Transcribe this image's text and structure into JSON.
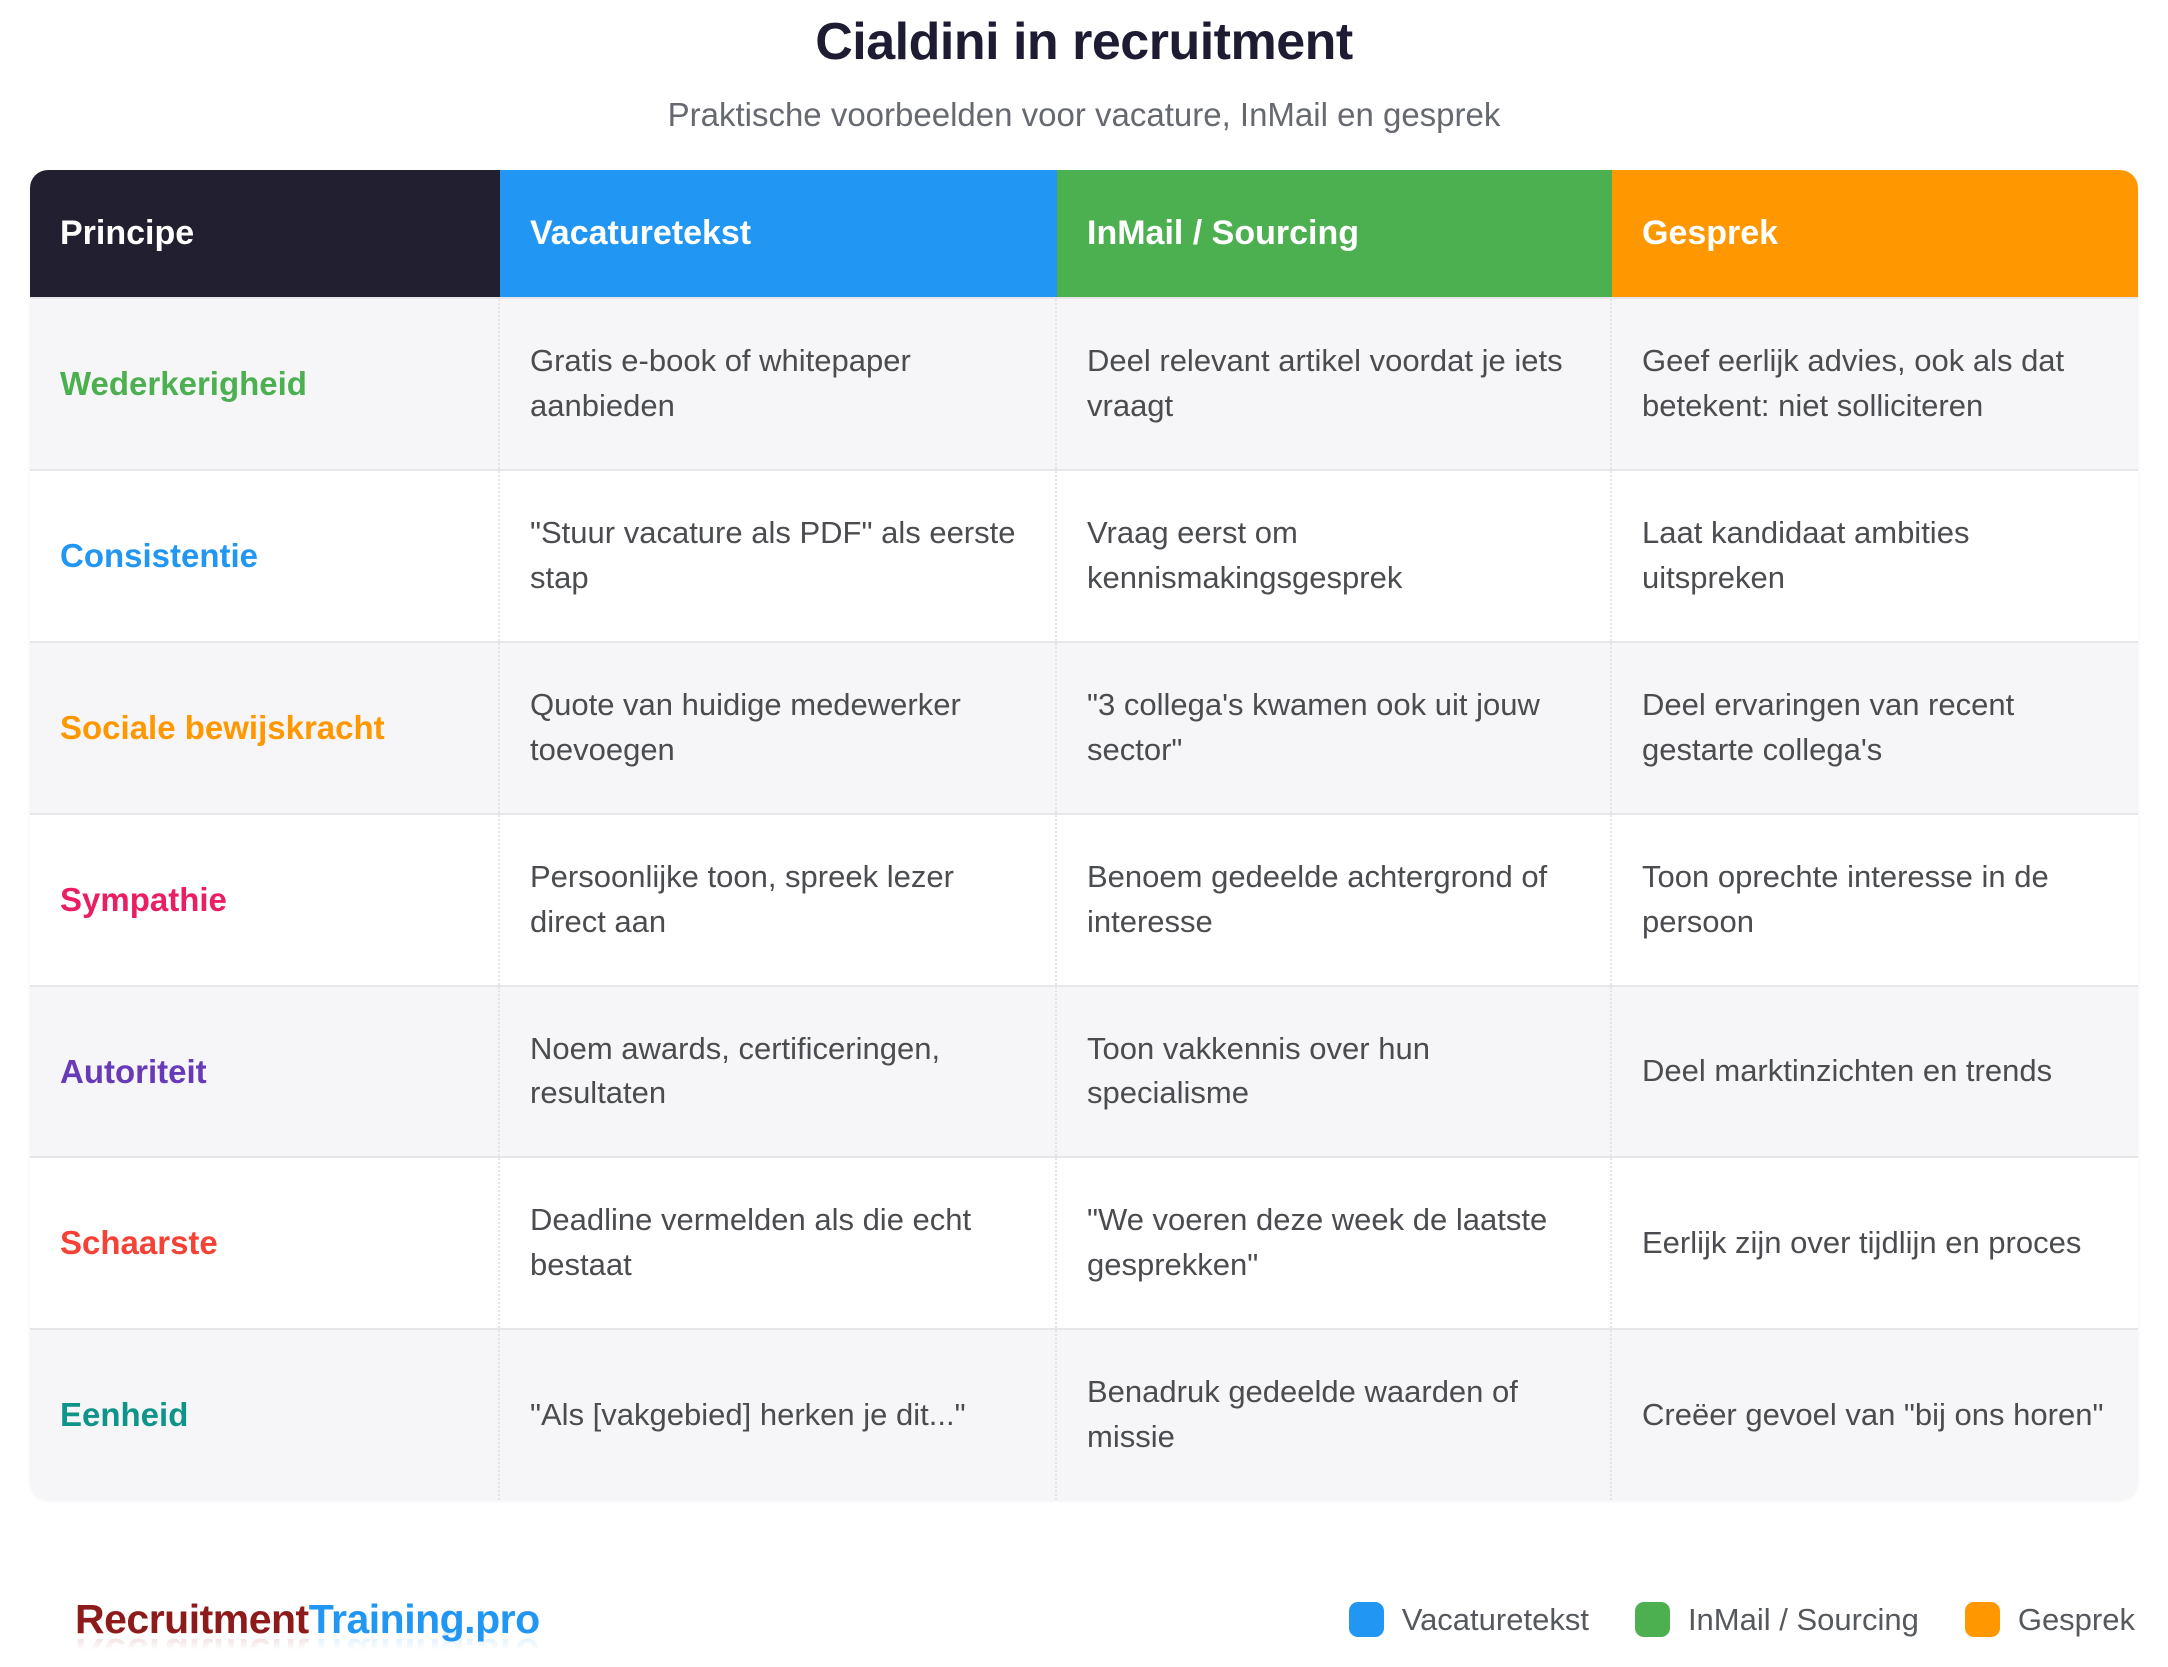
{
  "page": {
    "title": "Cialdini in recruitment",
    "subtitle": "Praktische voorbeelden voor vacature, InMail en gesprek"
  },
  "table": {
    "columns": [
      {
        "label": "Principe",
        "color": "#221f30"
      },
      {
        "label": "Vacaturetekst",
        "color": "#2196f3"
      },
      {
        "label": "InMail / Sourcing",
        "color": "#4caf50"
      },
      {
        "label": "Gesprek",
        "color": "#ff9800"
      }
    ],
    "rows": [
      {
        "principle": "Wederkerigheid",
        "color": "#4caf50",
        "vacaturetekst": "Gratis e-book of whitepaper aanbieden",
        "inmail": "Deel relevant artikel voordat je iets vraagt",
        "gesprek": "Geef eerlijk advies, ook als dat betekent: niet solliciteren"
      },
      {
        "principle": "Consistentie",
        "color": "#2196f3",
        "vacaturetekst": "\"Stuur vacature als PDF\" als eerste stap",
        "inmail": "Vraag eerst om kennismakingsgesprek",
        "gesprek": "Laat kandidaat ambities uitspreken"
      },
      {
        "principle": "Sociale bewijskracht",
        "color": "#ff9800",
        "vacaturetekst": "Quote van huidige medewerker toevoegen",
        "inmail": "\"3 collega's kwamen ook uit jouw sector\"",
        "gesprek": "Deel ervaringen van recent gestarte collega's"
      },
      {
        "principle": "Sympathie",
        "color": "#e91e63",
        "vacaturetekst": "Persoonlijke toon, spreek lezer direct aan",
        "inmail": "Benoem gedeelde achtergrond of interesse",
        "gesprek": "Toon oprechte interesse in de persoon"
      },
      {
        "principle": "Autoriteit",
        "color": "#673ab7",
        "vacaturetekst": "Noem awards, certificeringen, resultaten",
        "inmail": "Toon vakkennis over hun specialisme",
        "gesprek": "Deel marktinzichten en trends"
      },
      {
        "principle": "Schaarste",
        "color": "#f44336",
        "vacaturetekst": "Deadline vermelden als die echt bestaat",
        "inmail": "\"We voeren deze week de laatste gesprekken\"",
        "gesprek": "Eerlijk zijn over tijdlijn en proces"
      },
      {
        "principle": "Eenheid",
        "color": "#0f9489",
        "vacaturetekst": "\"Als [vakgebied] herken je dit...\"",
        "inmail": "Benadruk gedeelde waarden of missie",
        "gesprek": "Creëer gevoel van \"bij ons horen\""
      }
    ]
  },
  "footer": {
    "logo": {
      "part1": "Recruitment",
      "part1_color": "#8e1b1b",
      "part2": "Training.pro",
      "part2_color": "#2196f3"
    },
    "legend": [
      {
        "label": "Vacaturetekst",
        "color": "#2196f3"
      },
      {
        "label": "InMail / Sourcing",
        "color": "#4caf50"
      },
      {
        "label": "Gesprek",
        "color": "#ff9800"
      }
    ]
  }
}
